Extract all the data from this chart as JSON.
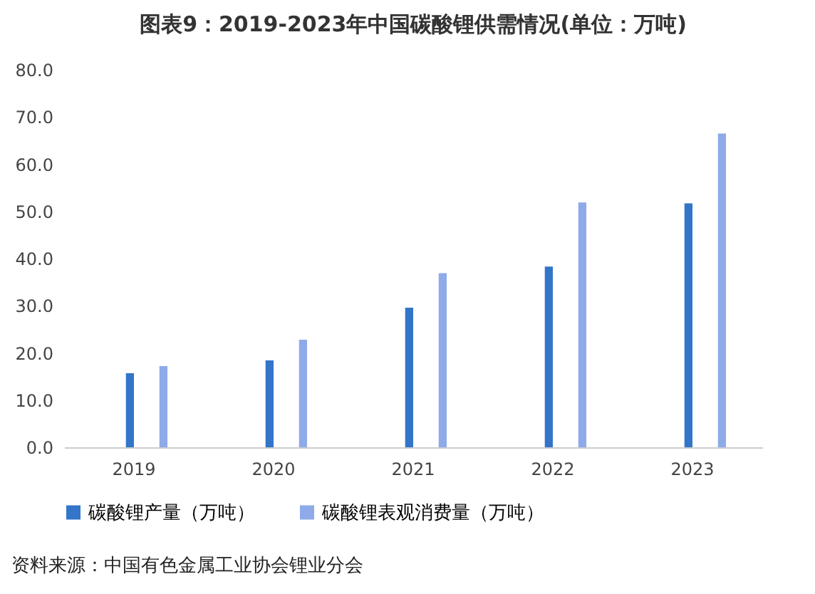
{
  "chart_data": {
    "type": "bar",
    "title": "图表9：2019-2023年中国碳酸锂供需情况(单位：万吨)",
    "categories": [
      "2019",
      "2020",
      "2021",
      "2022",
      "2023"
    ],
    "series": [
      {
        "name": "碳酸锂产量（万吨）",
        "color": "#3375c9",
        "values": [
          15.7,
          18.4,
          29.6,
          38.3,
          51.7
        ]
      },
      {
        "name": "碳酸锂表观消费量（万吨）",
        "color": "#8eaae8",
        "values": [
          17.2,
          22.8,
          36.9,
          51.9,
          66.5
        ]
      }
    ],
    "ylim": [
      0,
      80
    ],
    "yticks": [
      {
        "value": 0,
        "label": "0.0"
      },
      {
        "value": 10,
        "label": "10.0"
      },
      {
        "value": 20,
        "label": "20.0"
      },
      {
        "value": 30,
        "label": "30.0"
      },
      {
        "value": 40,
        "label": "40.0"
      },
      {
        "value": 50,
        "label": "50.0"
      },
      {
        "value": 60,
        "label": "60.0"
      },
      {
        "value": 70,
        "label": "70.0"
      },
      {
        "value": 80,
        "label": "80.0"
      }
    ],
    "grid": false,
    "legend": "bottom",
    "annotations": [
      "资料来源：中国有色金属工业协会锂业分会"
    ]
  }
}
